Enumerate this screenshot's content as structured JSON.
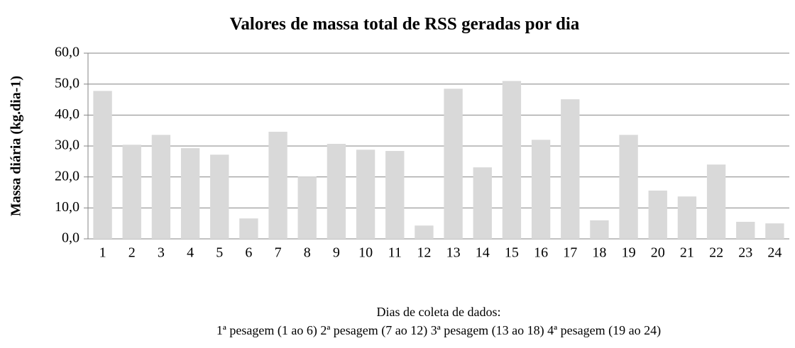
{
  "chart_data": {
    "type": "bar",
    "title": "Valores de massa total de RSS geradas por dia",
    "ylabel": "Massa diária (kg.dia-1)",
    "xlabel": [
      "Dias de coleta de dados:",
      "1ª pesagem (1 ao 6) 2ª pesagem (7 ao 12) 3ª pesagem (13 ao 18) 4ª pesagem (19 ao 24)"
    ],
    "categories": [
      "1",
      "2",
      "3",
      "4",
      "5",
      "6",
      "7",
      "8",
      "9",
      "10",
      "11",
      "12",
      "13",
      "14",
      "15",
      "16",
      "17",
      "18",
      "19",
      "20",
      "21",
      "22",
      "23",
      "24"
    ],
    "values": [
      47.8,
      30.4,
      33.6,
      29.3,
      27.2,
      6.6,
      34.6,
      20.1,
      30.7,
      28.8,
      28.4,
      4.3,
      48.5,
      23.1,
      51.0,
      32.0,
      45.1,
      6.0,
      33.6,
      15.6,
      13.7,
      24.0,
      5.5,
      5.0
    ],
    "color": "#d9d9d9",
    "ylim": [
      0,
      60
    ],
    "yticks": [
      {
        "value": 0,
        "label": "0,0"
      },
      {
        "value": 10,
        "label": "10,0"
      },
      {
        "value": 20,
        "label": "20,0"
      },
      {
        "value": 30,
        "label": "30,0"
      },
      {
        "value": 40,
        "label": "40,0"
      },
      {
        "value": 50,
        "label": "50,0"
      },
      {
        "value": 60,
        "label": "60,0"
      }
    ],
    "grid": true
  }
}
